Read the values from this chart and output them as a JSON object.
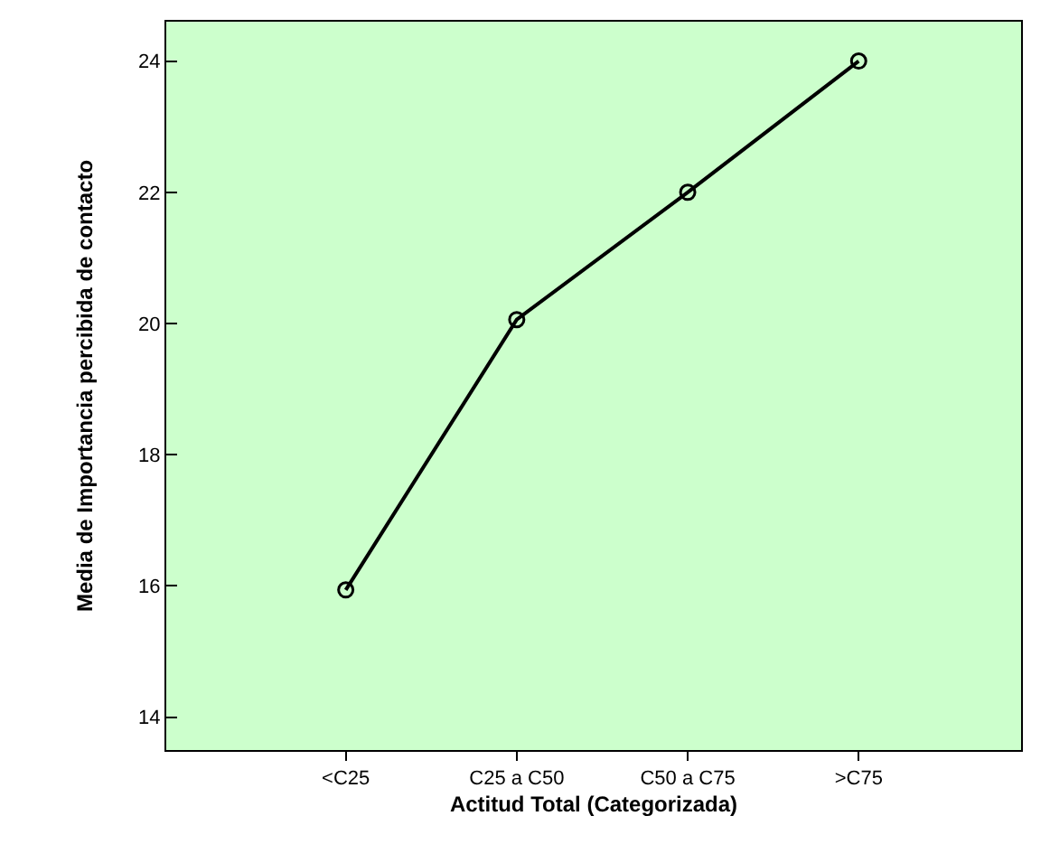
{
  "chart_data": {
    "type": "line",
    "xlabel": "Actitud Total (Categorizada)",
    "ylabel": "Media de Importancia percibida de contacto",
    "categories": [
      "<C25",
      "C25 a C50",
      "C50 a C75",
      ">C75"
    ],
    "series": [
      {
        "color": "#000000",
        "values": [
          15.94,
          20.06,
          22.0,
          24.0
        ]
      }
    ],
    "ylim": [
      13.5,
      24.6
    ],
    "yticks": [
      14,
      16,
      18,
      20,
      22,
      24
    ],
    "grid": false,
    "legend": false,
    "marker": "circle",
    "line_style": "solid"
  }
}
